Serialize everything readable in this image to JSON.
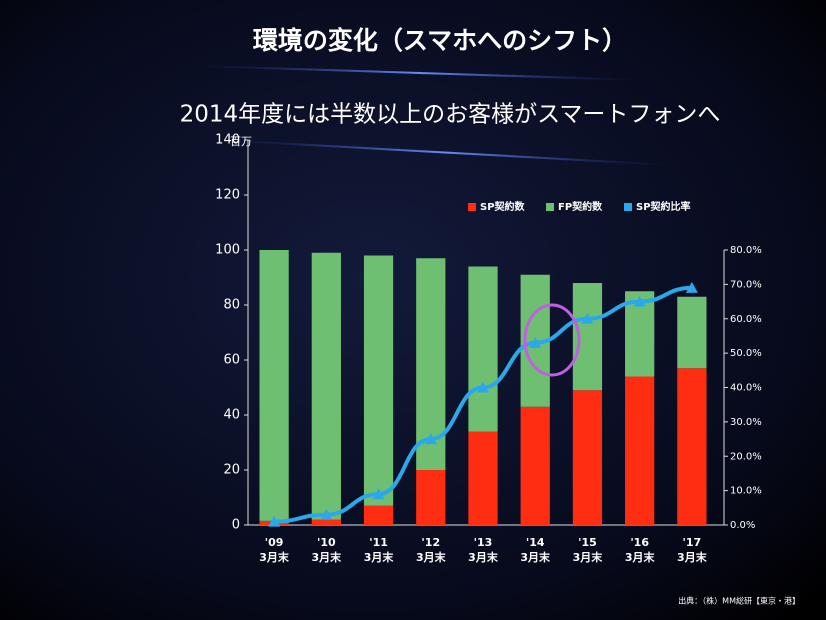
{
  "title": "環境の変化（スマホへのシフト）",
  "subtitle": "2014年度には半数以上のお客様がスマートフォンへ",
  "source": "出典：（株）MM総研【東京・港】",
  "chart_data": {
    "type": "bar",
    "stacked": true,
    "y_unit": "百万",
    "categories": [
      [
        "'09",
        "3月末"
      ],
      [
        "'10",
        "3月末"
      ],
      [
        "'11",
        "3月末"
      ],
      [
        "'12",
        "3月末"
      ],
      [
        "'13",
        "3月末"
      ],
      [
        "'14",
        "3月末"
      ],
      [
        "'15",
        "3月末"
      ],
      [
        "'16",
        "3月末"
      ],
      [
        "'17",
        "3月末"
      ]
    ],
    "series": [
      {
        "name": "SP契約数",
        "color": "#ff2d12",
        "values": [
          1.5,
          2,
          7,
          20,
          34,
          43,
          49,
          54,
          57
        ]
      },
      {
        "name": "FP契約数",
        "color": "#6fbf72",
        "values": [
          98.5,
          97,
          91,
          77,
          60,
          48,
          39,
          31,
          26
        ]
      },
      {
        "name": "SP契約比率",
        "type": "line",
        "axis": "y2",
        "color": "#2aa8ea",
        "values": [
          1,
          3,
          9,
          25,
          40,
          53,
          60,
          65,
          69
        ]
      }
    ],
    "ylim": [
      0,
      140
    ],
    "yticks": [
      0,
      20,
      40,
      60,
      80,
      100,
      120,
      140
    ],
    "y2lim": [
      0,
      80
    ],
    "y2ticks": [
      {
        "value": 0,
        "label": "0.0%"
      },
      {
        "value": 10,
        "label": "10.0%"
      },
      {
        "value": 20,
        "label": "20.0%"
      },
      {
        "value": 30,
        "label": "30.0%"
      },
      {
        "value": 40,
        "label": "40.0%"
      },
      {
        "value": 50,
        "label": "50.0%"
      },
      {
        "value": 60,
        "label": "60.0%"
      },
      {
        "value": 70,
        "label": "70.0%"
      },
      {
        "value": 80,
        "label": "80.0%"
      }
    ]
  }
}
